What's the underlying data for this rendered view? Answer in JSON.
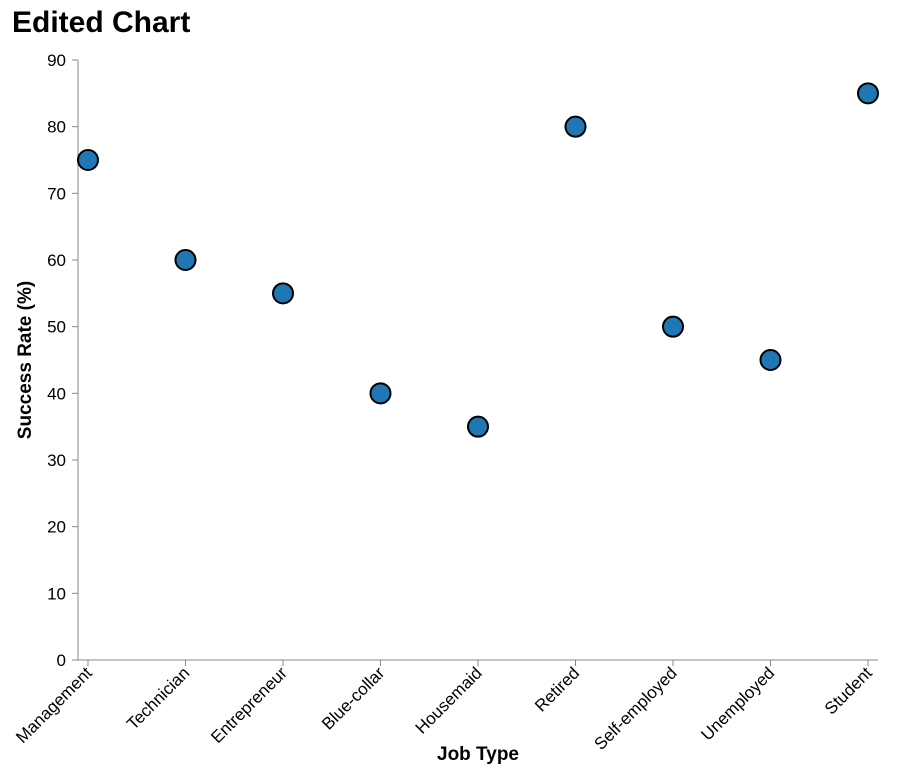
{
  "chart_data": {
    "type": "scatter",
    "title": "Edited Chart",
    "xlabel": "Job Type",
    "ylabel": "Success Rate (%)",
    "categories": [
      "Management",
      "Technician",
      "Entrepreneur",
      "Blue-collar",
      "Housemaid",
      "Retired",
      "Self-employed",
      "Unemployed",
      "Student"
    ],
    "values": [
      75,
      60,
      55,
      40,
      35,
      80,
      50,
      45,
      85
    ],
    "ylim": [
      0,
      90
    ],
    "yticks": [
      0,
      10,
      20,
      30,
      40,
      50,
      60,
      70,
      80,
      90
    ],
    "grid": false,
    "legend": "none",
    "point_color": "#1f77b4",
    "point_stroke": "#000000",
    "axis_color": "#888888"
  }
}
